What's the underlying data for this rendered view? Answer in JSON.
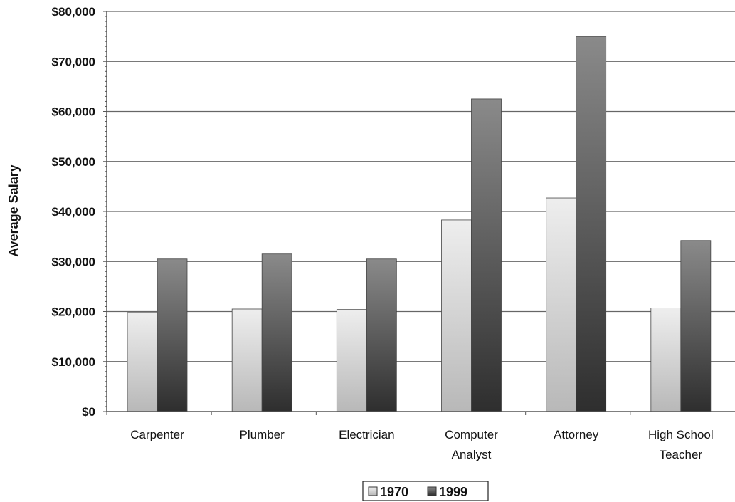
{
  "chart_data": {
    "type": "bar",
    "title": "",
    "xlabel": "",
    "ylabel": "Average Salary",
    "ylim": [
      0,
      80000
    ],
    "ytick_values": [
      0,
      10000,
      20000,
      30000,
      40000,
      50000,
      60000,
      70000,
      80000
    ],
    "ytick_labels": [
      "$0",
      "$10,000",
      "$20,000",
      "$30,000",
      "$40,000",
      "$50,000",
      "$60,000",
      "$70,000",
      "$80,000"
    ],
    "categories": [
      [
        "Carpenter"
      ],
      [
        "Plumber"
      ],
      [
        "Electrician"
      ],
      [
        "Computer",
        "Analyst"
      ],
      [
        "Attorney"
      ],
      [
        "High School",
        "Teacher"
      ]
    ],
    "series": [
      {
        "name": "1970",
        "values": [
          19800,
          20500,
          20400,
          38300,
          42700,
          20700
        ]
      },
      {
        "name": "1999",
        "values": [
          30500,
          31500,
          30500,
          62500,
          75000,
          34200
        ]
      }
    ],
    "grid": true,
    "legend_position": "bottom",
    "colors": {
      "series_1970_top": "#eeeeee",
      "series_1970_bottom": "#b8b8b8",
      "series_1999_top": "#8a8a8a",
      "series_1999_bottom": "#2e2e2e",
      "grid": "#666666",
      "axis": "#555555"
    }
  }
}
